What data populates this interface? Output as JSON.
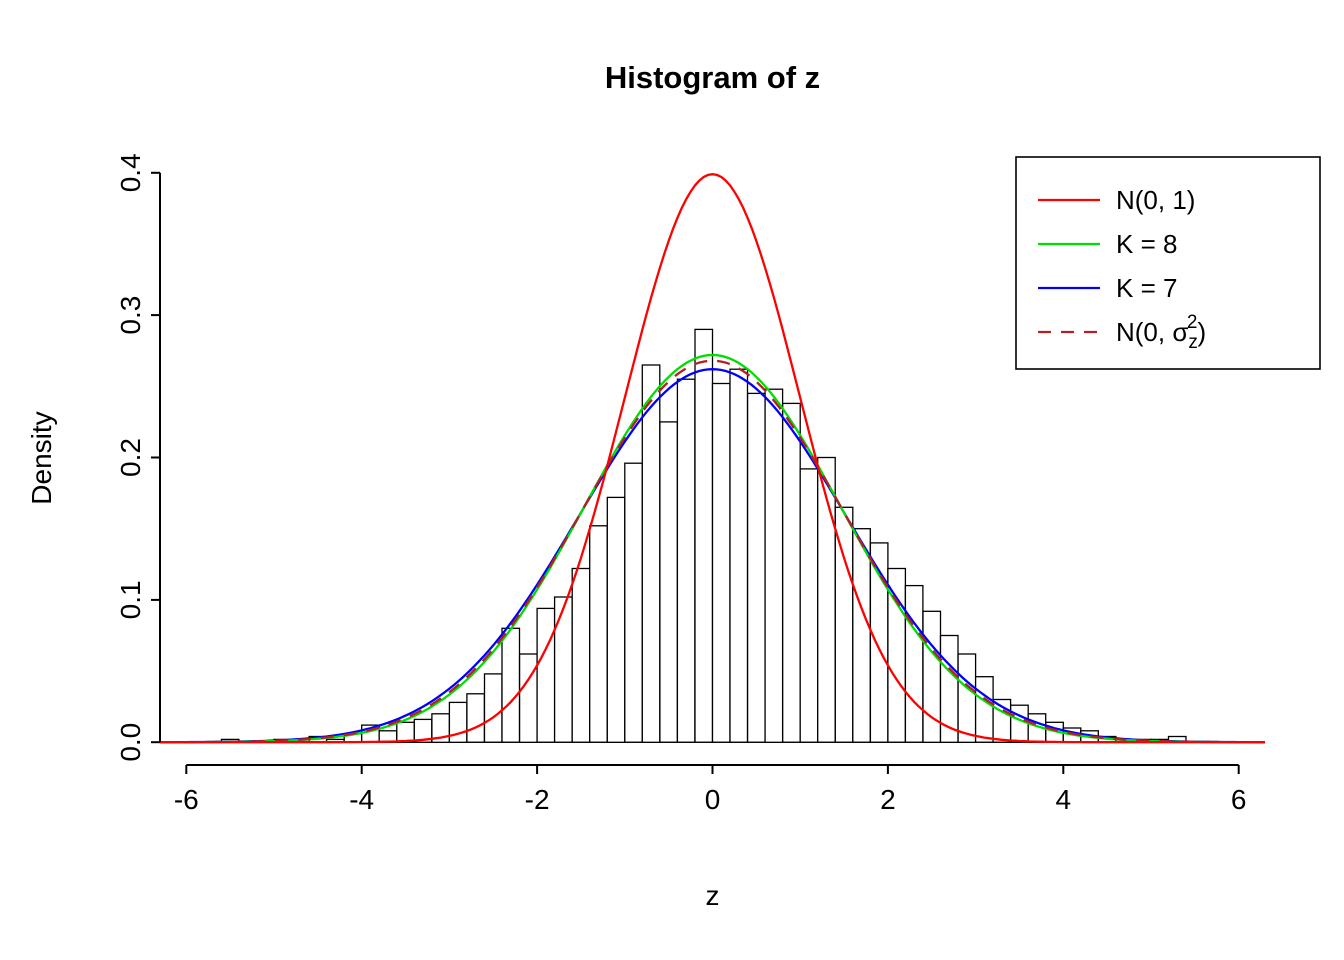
{
  "page": {
    "background": "#FFFFFF",
    "text_color": "#000000",
    "axis_color": "#000000"
  },
  "chart_data": {
    "type": "histogram",
    "title": "Histogram of z",
    "xlabel": "z",
    "ylabel": "Density",
    "xlim": [
      -6,
      6
    ],
    "ylim": [
      0,
      0.4
    ],
    "x_ticks": [
      -6,
      -4,
      -2,
      0,
      2,
      4,
      6
    ],
    "x_tick_labels": [
      "-6",
      "-4",
      "-2",
      "0",
      "2",
      "4",
      "6"
    ],
    "y_ticks": [
      0,
      0.1,
      0.2,
      0.3,
      0.4
    ],
    "y_tick_labels": [
      "0.0",
      "0.1",
      "0.2",
      "0.3",
      "0.4"
    ],
    "grid": false,
    "legend_position": "top-right",
    "histogram": {
      "bin_start": -5.6,
      "bin_width": 0.2,
      "fill": "#FFFFFF",
      "stroke": "#000000",
      "densities": [
        0.002,
        0.0,
        0.0,
        0.002,
        0.0,
        0.004,
        0.002,
        0.006,
        0.012,
        0.008,
        0.014,
        0.016,
        0.02,
        0.028,
        0.034,
        0.048,
        0.08,
        0.062,
        0.094,
        0.102,
        0.122,
        0.152,
        0.172,
        0.196,
        0.265,
        0.225,
        0.255,
        0.29,
        0.252,
        0.262,
        0.245,
        0.248,
        0.238,
        0.192,
        0.2,
        0.165,
        0.15,
        0.14,
        0.122,
        0.11,
        0.092,
        0.075,
        0.062,
        0.046,
        0.03,
        0.026,
        0.02,
        0.014,
        0.01,
        0.008,
        0.004,
        0.002,
        0.002,
        0.002,
        0.004
      ]
    },
    "curves": [
      {
        "label": "N(0, 1)",
        "label_parts": [
          {
            "t": "N(0, 1)"
          }
        ],
        "distribution": "normal",
        "mean": 0,
        "sd": 1.0,
        "peak_density": 0.399,
        "color": "#FF0000",
        "linestyle": "solid"
      },
      {
        "label": "K = 8",
        "label_parts": [
          {
            "t": "K = 8"
          }
        ],
        "distribution": "normal",
        "mean": 0,
        "sd": 1.466,
        "peak_density": 0.272,
        "color": "#00DD00",
        "linestyle": "solid"
      },
      {
        "label": "K = 7",
        "label_parts": [
          {
            "t": "K = 7"
          }
        ],
        "distribution": "normal",
        "mean": 0,
        "sd": 1.523,
        "peak_density": 0.262,
        "color": "#0000FF",
        "linestyle": "solid"
      },
      {
        "label": "N(0, σz²)",
        "label_parts": [
          {
            "t": "N(0, "
          },
          {
            "t": "σ"
          },
          {
            "t": "z",
            "pos": "sub"
          },
          {
            "t": "2",
            "pos": "sup",
            "over": true
          },
          {
            "t": ")"
          }
        ],
        "distribution": "normal",
        "mean": 0,
        "sd": 1.489,
        "peak_density": 0.268,
        "color": "#B22222",
        "linestyle": "dashed"
      }
    ]
  }
}
